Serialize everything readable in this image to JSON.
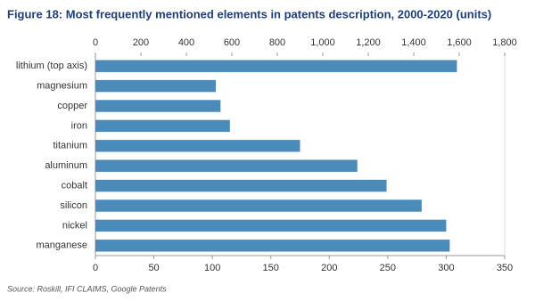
{
  "chart_data": {
    "type": "bar",
    "orientation": "horizontal",
    "title": "Figure 18: Most frequently mentioned elements in patents description, 2000-2020 (units)",
    "source": "Source: Roskill, IFI CLAIMS, Google Patents",
    "categories": [
      "lithium (top axis)",
      "magnesium",
      "copper",
      "iron",
      "titanium",
      "aluminum",
      "cobalt",
      "silicon",
      "nickel",
      "manganese"
    ],
    "series": [
      {
        "color": "#4a8bb9",
        "axis": "x2",
        "values": [
          1590,
          null,
          null,
          null,
          null,
          null,
          null,
          null,
          null,
          null
        ]
      },
      {
        "color": "#4a8bb9",
        "axis": "x",
        "values": [
          null,
          103,
          107,
          115,
          175,
          224,
          249,
          279,
          300,
          303
        ]
      }
    ],
    "xlim": [
      0,
      350
    ],
    "xticks": [
      0,
      50,
      100,
      150,
      200,
      250,
      300,
      350
    ],
    "x2lim": [
      0,
      1800
    ],
    "x2ticks": [
      0,
      200,
      400,
      600,
      800,
      {
        "value": 1000,
        "label": "1,000"
      },
      {
        "value": 1200,
        "label": "1,200"
      },
      {
        "value": 1400,
        "label": "1,400"
      },
      {
        "value": 1600,
        "label": "1,600"
      },
      {
        "value": 1800,
        "label": "1,800"
      }
    ],
    "grid": false
  }
}
